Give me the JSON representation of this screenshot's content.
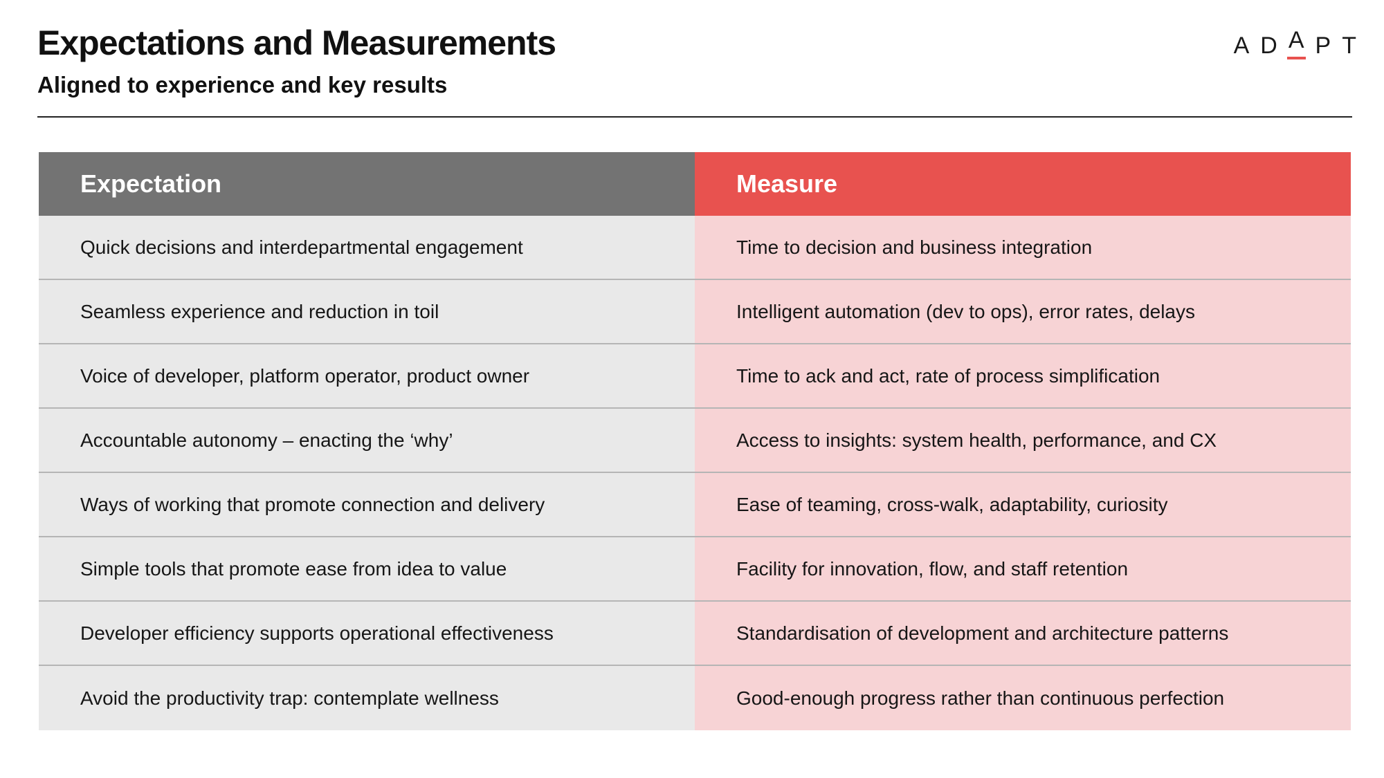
{
  "header": {
    "title": "Expectations and Measurements",
    "subtitle": "Aligned to experience and key results"
  },
  "logo": {
    "letters": [
      "A",
      "D",
      "A",
      "P",
      "T"
    ],
    "accent_color": "#e8524f"
  },
  "table": {
    "headers": [
      "Expectation",
      "Measure"
    ],
    "header_colors": [
      "#737373",
      "#e8524f"
    ],
    "row_colors": [
      "#e9e9e9",
      "#f7d3d5"
    ],
    "rows": [
      [
        "Quick decisions and interdepartmental engagement",
        "Time to decision and business integration"
      ],
      [
        "Seamless experience and reduction in toil",
        "Intelligent automation (dev to ops), error rates, delays"
      ],
      [
        "Voice of developer, platform operator, product owner",
        "Time to ack and act, rate of process simplification"
      ],
      [
        "Accountable autonomy – enacting the ‘why’",
        "Access to insights: system health, performance, and CX"
      ],
      [
        "Ways of working that promote connection and delivery",
        "Ease of teaming, cross-walk, adaptability, curiosity"
      ],
      [
        "Simple tools that promote ease from idea to value",
        "Facility for innovation, flow, and staff retention"
      ],
      [
        "Developer efficiency supports operational effectiveness",
        "Standardisation of development and architecture patterns"
      ],
      [
        "Avoid the productivity trap: contemplate wellness",
        "Good-enough progress rather than continuous perfection"
      ]
    ]
  }
}
